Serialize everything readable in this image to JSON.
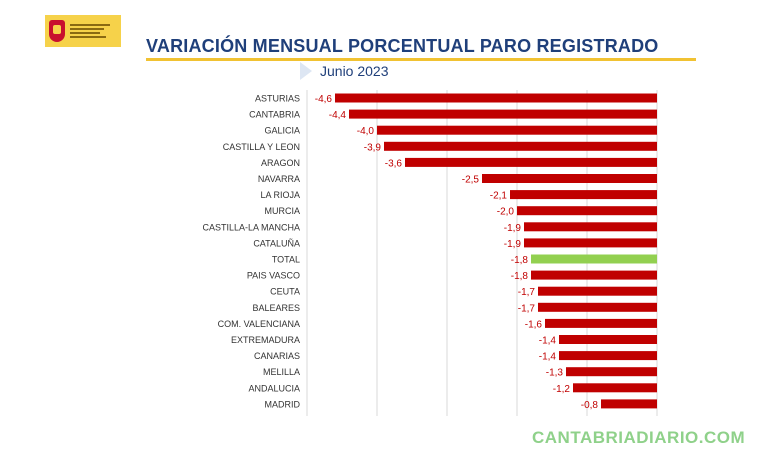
{
  "header": {
    "title": "VARIACIÓN MENSUAL PORCENTUAL PARO REGISTRADO",
    "subtitle": "Junio 2023"
  },
  "logo": {
    "org": "Ministerio de Trabajo y Economía Social"
  },
  "watermark": "CANTABRIADIARIO.COM",
  "colors": {
    "bar": "#c00000",
    "highlight": "#92d050",
    "label": "#c00000",
    "axis_text": "#333333",
    "title": "#1f3f7a"
  },
  "chart_data": {
    "type": "bar",
    "orientation": "horizontal",
    "highlight_category": "TOTAL",
    "xlim": [
      -5,
      0
    ],
    "grid": true,
    "categories": [
      "ASTURIAS",
      "CANTABRIA",
      "GALICIA",
      "CASTILLA Y LEON",
      "ARAGON",
      "NAVARRA",
      "LA RIOJA",
      "MURCIA",
      "CASTILLA-LA MANCHA",
      "CATALUÑA",
      "TOTAL",
      "PAIS VASCO",
      "CEUTA",
      "BALEARES",
      "COM. VALENCIANA",
      "EXTREMADURA",
      "CANARIAS",
      "MELILLA",
      "ANDALUCIA",
      "MADRID"
    ],
    "values": [
      -4.6,
      -4.4,
      -4.0,
      -3.9,
      -3.6,
      -2.5,
      -2.1,
      -2.0,
      -1.9,
      -1.9,
      -1.8,
      -1.8,
      -1.7,
      -1.7,
      -1.6,
      -1.4,
      -1.4,
      -1.3,
      -1.2,
      -0.8
    ],
    "value_labels": [
      "-4,6",
      "-4,4",
      "-4,0",
      "-3,9",
      "-3,6",
      "-2,5",
      "-2,1",
      "-2,0",
      "-1,9",
      "-1,9",
      "-1,8",
      "-1,8",
      "-1,7",
      "-1,7",
      "-1,6",
      "-1,4",
      "-1,4",
      "-1,3",
      "-1,2",
      "-0,8"
    ]
  }
}
